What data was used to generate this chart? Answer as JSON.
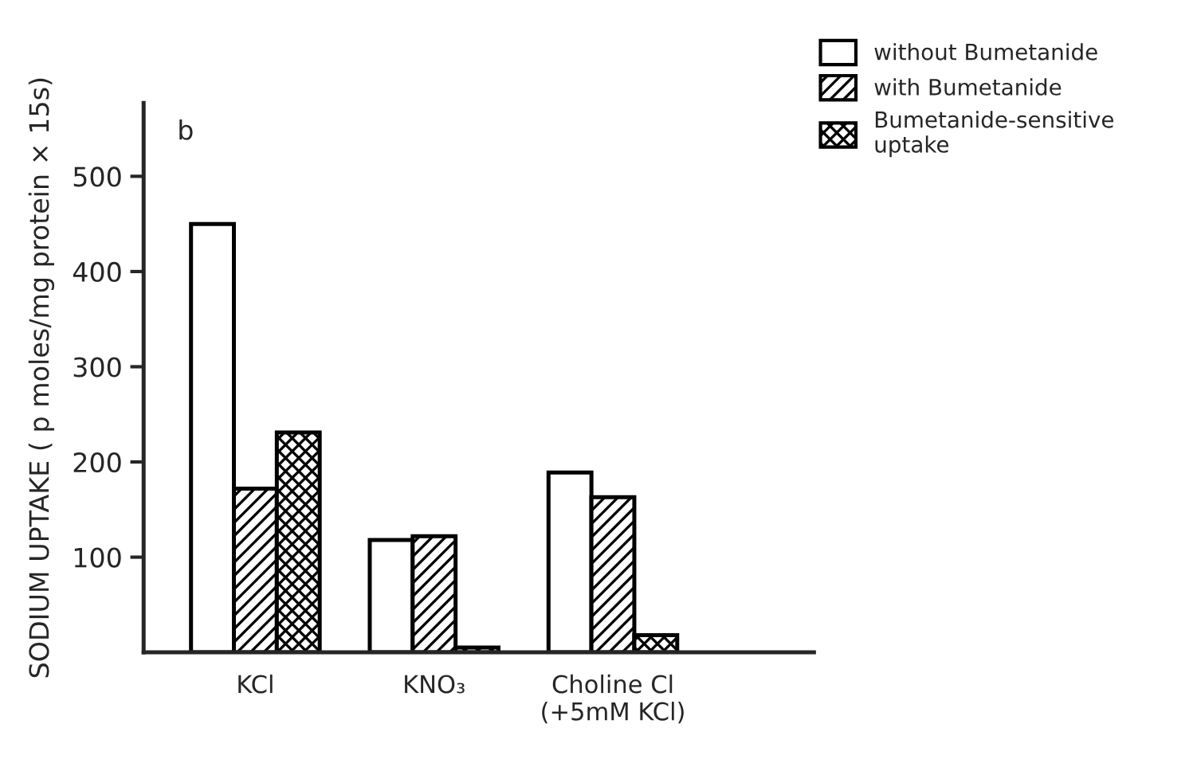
{
  "chart_data": {
    "type": "bar",
    "ylabel": "SODIUM UPTAKE ( p moles/mg protein × 15s)",
    "categories": [
      "KCl",
      "KNO₃",
      "Choline Cl\n(+5mM KCl)"
    ],
    "series": [
      {
        "name": "without Bumetanide",
        "color": "#ffffff",
        "values": [
          450,
          118,
          189
        ]
      },
      {
        "name": "with Bumetanide",
        "color": "#000000",
        "values": [
          172,
          122,
          163
        ]
      },
      {
        "name": "Bumetanide-sensitive\nuptake",
        "color": "#000000",
        "values": [
          231,
          5,
          18
        ]
      }
    ],
    "annotations": [
      "b"
    ],
    "ylim": [
      0,
      577
    ],
    "yticks": [
      100,
      200,
      300,
      400,
      500
    ],
    "legend": "top right",
    "grid": false
  }
}
